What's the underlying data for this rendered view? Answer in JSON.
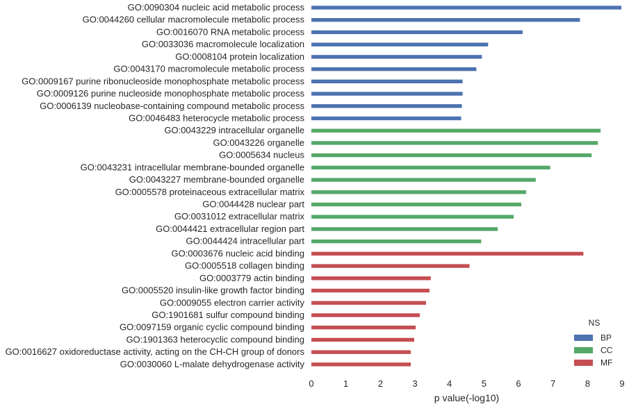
{
  "chart_data": {
    "type": "bar",
    "orientation": "horizontal",
    "xlabel": "p value(-log10)",
    "xlim": [
      0,
      9
    ],
    "xticks": [
      0,
      1,
      2,
      3,
      4,
      5,
      6,
      7,
      8,
      9
    ],
    "grid": false,
    "legend": {
      "title": "NS",
      "position": "bottom-right",
      "entries": [
        {
          "name": "BP",
          "color": "#4c72b0"
        },
        {
          "name": "CC",
          "color": "#55a868"
        },
        {
          "name": "MF",
          "color": "#c44e52"
        }
      ]
    },
    "categories": [
      "GO:0090304 nucleic acid metabolic process",
      "GO:0044260 cellular macromolecule metabolic process",
      "GO:0016070 RNA metabolic process",
      "GO:0033036 macromolecule localization",
      "GO:0008104 protein localization",
      "GO:0043170 macromolecule metabolic process",
      "GO:0009167 purine ribonucleoside monophosphate metabolic process",
      "GO:0009126 purine nucleoside monophosphate metabolic process",
      "GO:0006139 nucleobase-containing compound metabolic process",
      "GO:0046483 heterocycle metabolic process",
      "GO:0043229 intracellular organelle",
      "GO:0043226 organelle",
      "GO:0005634 nucleus",
      "GO:0043231 intracellular membrane-bounded organelle",
      "GO:0043227 membrane-bounded organelle",
      "GO:0005578 proteinaceous extracellular matrix",
      "GO:0044428 nuclear part",
      "GO:0031012 extracellular matrix",
      "GO:0044421 extracellular region part",
      "GO:0044424 intracellular part",
      "GO:0003676 nucleic acid binding",
      "GO:0005518 collagen binding",
      "GO:0003779 actin binding",
      "GO:0005520 insulin-like growth factor binding",
      "GO:0009055 electron carrier activity",
      "GO:1901681 sulfur compound binding",
      "GO:0097159 organic cyclic compound binding",
      "GO:1901363 heterocyclic compound binding",
      "GO:0016627 oxidoreductase activity, acting on the CH-CH group of donors",
      "GO:0030060 L-malate dehydrogenase activity"
    ],
    "ns": [
      "BP",
      "BP",
      "BP",
      "BP",
      "BP",
      "BP",
      "BP",
      "BP",
      "BP",
      "BP",
      "CC",
      "CC",
      "CC",
      "CC",
      "CC",
      "CC",
      "CC",
      "CC",
      "CC",
      "CC",
      "MF",
      "MF",
      "MF",
      "MF",
      "MF",
      "MF",
      "MF",
      "MF",
      "MF",
      "MF"
    ],
    "values": [
      8.98,
      7.78,
      6.12,
      5.12,
      4.94,
      4.78,
      4.38,
      4.38,
      4.36,
      4.34,
      8.38,
      8.3,
      8.12,
      6.92,
      6.5,
      6.22,
      6.08,
      5.86,
      5.4,
      4.92,
      7.88,
      4.58,
      3.46,
      3.42,
      3.32,
      3.14,
      3.02,
      2.98,
      2.88,
      2.88
    ]
  }
}
